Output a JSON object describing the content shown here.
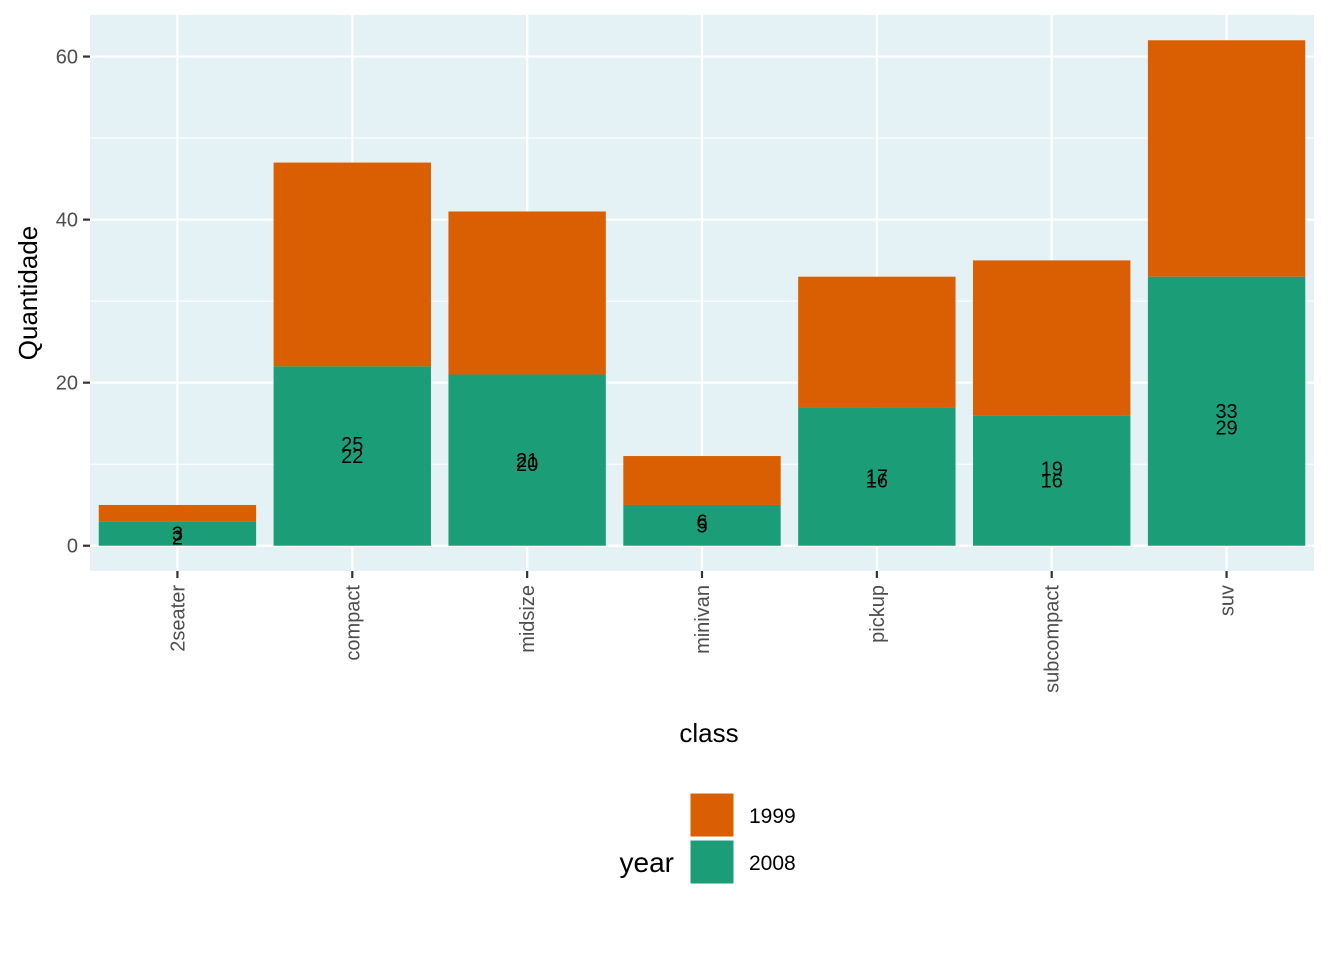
{
  "chart_data": {
    "type": "bar",
    "stacked": true,
    "categories": [
      "2seater",
      "compact",
      "midsize",
      "minivan",
      "pickup",
      "subcompact",
      "suv"
    ],
    "series": [
      {
        "name": "1999",
        "color": "#D95F02",
        "values": [
          2,
          25,
          20,
          6,
          16,
          19,
          29
        ]
      },
      {
        "name": "2008",
        "color": "#1B9E77",
        "values": [
          3,
          22,
          21,
          5,
          17,
          16,
          33
        ]
      }
    ],
    "xlabel": "class",
    "ylabel": "Quantidade",
    "ylim": [
      -3.1,
      65.1
    ],
    "yticks": [
      0,
      20,
      40,
      60
    ],
    "yticks_minor": [
      10,
      30,
      50
    ],
    "grid": true,
    "panel_background": "#E5F2F5",
    "x_tick_label_rotation": "vertical",
    "legend": {
      "title": "year",
      "position": "bottom",
      "entries": [
        "1999",
        "2008"
      ]
    }
  }
}
